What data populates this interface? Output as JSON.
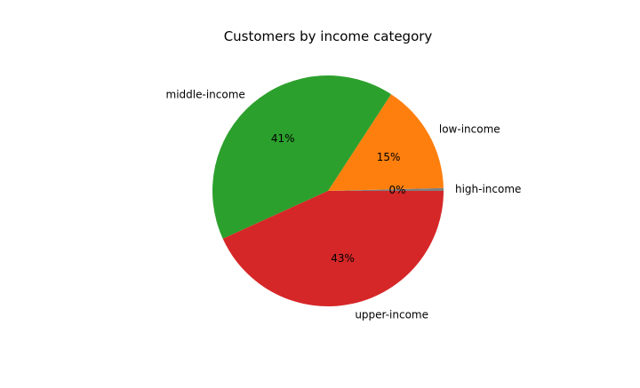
{
  "chart_data": {
    "type": "pie",
    "title": "Customers by income category",
    "slices": [
      {
        "label": "high-income",
        "value": 0.4,
        "pct_label": "0%",
        "color": "#7f7f7f"
      },
      {
        "label": "low-income",
        "value": 15.4,
        "pct_label": "15%",
        "color": "#ff7f0e"
      },
      {
        "label": "middle-income",
        "value": 41.0,
        "pct_label": "41%",
        "color": "#2ca02c"
      },
      {
        "label": "upper-income",
        "value": 43.2,
        "pct_label": "43%",
        "color": "#d62728"
      }
    ],
    "legend": "none"
  }
}
